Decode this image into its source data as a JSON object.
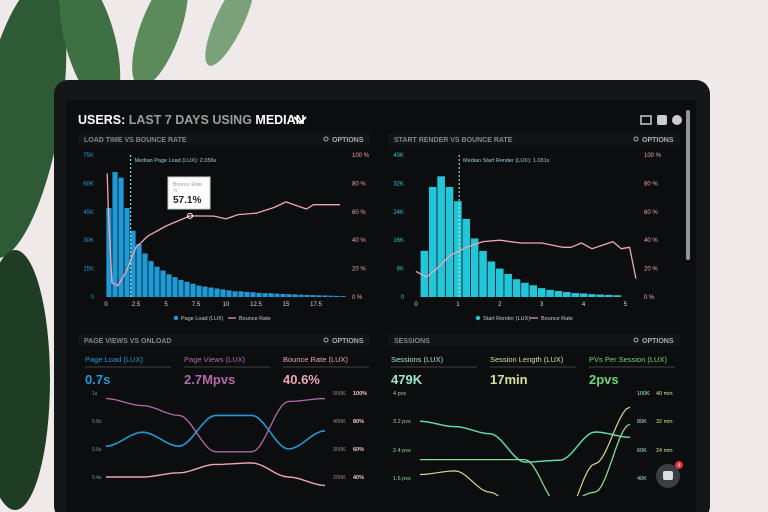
{
  "header": {
    "prefix": "USERS:",
    "range": "LAST 7 DAYS",
    "using": "USING",
    "stat": "MEDIAN"
  },
  "toolbar_icons": [
    "monitor-icon",
    "share-icon",
    "help-icon"
  ],
  "colors": {
    "bg": "#0b0d0f",
    "blue": "#1e9ad6",
    "cyan": "#22c6d8",
    "pink": "#f0a6b4",
    "purple": "#b469a8",
    "teal": "#5fd6b5",
    "green": "#6fd67a",
    "yellow": "#d7d98a"
  },
  "options_label": "OPTIONS",
  "panels": {
    "load": {
      "title": "LOAD TIME VS BOUNCE RATE",
      "median": "Median Page Load (LUX): 2.056s",
      "tooltip_title": "Bounce Rate",
      "tooltip_sub": "7s",
      "tooltip_value": "57.1%",
      "legend": [
        "Page Load (LUX)",
        "Bounce Rate"
      ]
    },
    "render": {
      "title": "START RENDER VS BOUNCE RATE",
      "median": "Median Start Render (LUX): 1.031s",
      "legend": [
        "Start Render (LUX)",
        "Bounce Rate"
      ]
    },
    "pageviews": {
      "title": "PAGE VIEWS VS ONLOAD",
      "metrics": [
        {
          "label": "Page Load (LUX)",
          "value": "0.7s"
        },
        {
          "label": "Page Views (LUX)",
          "value": "2.7Mpvs"
        },
        {
          "label": "Bounce Rate (LUX)",
          "value": "40.6%"
        }
      ]
    },
    "sessions": {
      "title": "SESSIONS",
      "metrics": [
        {
          "label": "Sessions (LUX)",
          "value": "479K"
        },
        {
          "label": "Session Length (LUX)",
          "value": "17min"
        },
        {
          "label": "PVs Per Session (LUX)",
          "value": "2pvs"
        }
      ]
    }
  },
  "chat_badge": "4",
  "chart_data": [
    {
      "type": "bar",
      "title": "LOAD TIME VS BOUNCE RATE",
      "x_ticks": [
        "0",
        "2.5",
        "5",
        "7.5",
        "10",
        "12.5",
        "15",
        "17.5"
      ],
      "y_ticks": [
        "0",
        "15K",
        "30K",
        "45K",
        "60K",
        "75K"
      ],
      "y2_ticks": [
        "0 %",
        "20 %",
        "40 %",
        "60 %",
        "80 %",
        "100 %"
      ],
      "xlim": [
        0,
        20
      ],
      "ylim": [
        0,
        75000
      ],
      "y2lim": [
        0,
        100
      ],
      "bin_width": 0.5,
      "series": [
        {
          "name": "Page Load (LUX)",
          "type": "bar",
          "values": [
            47000,
            66000,
            63000,
            47000,
            35000,
            28000,
            23000,
            19000,
            16000,
            14000,
            12000,
            10500,
            9000,
            8000,
            7000,
            6000,
            5500,
            5000,
            4500,
            4000,
            3500,
            3000,
            3000,
            2700,
            2500,
            2200,
            2000,
            2000,
            1800,
            1600,
            1500,
            1400,
            1200,
            1100,
            1000,
            900,
            800,
            700,
            600,
            500
          ]
        },
        {
          "name": "Bounce Rate",
          "type": "line",
          "points": [
            [
              0.1,
              87
            ],
            [
              0.2,
              60
            ],
            [
              0.5,
              10
            ],
            [
              1,
              8
            ],
            [
              1.7,
              18
            ],
            [
              2.5,
              35
            ],
            [
              3.5,
              43
            ],
            [
              5,
              50
            ],
            [
              7,
              57.1
            ],
            [
              9,
              57
            ],
            [
              10,
              55
            ],
            [
              11,
              58
            ],
            [
              12.5,
              59
            ],
            [
              14,
              63
            ],
            [
              15,
              67
            ],
            [
              16,
              64
            ],
            [
              16.7,
              62
            ],
            [
              17.3,
              65
            ],
            [
              18,
              65
            ],
            [
              19.5,
              65
            ]
          ]
        }
      ]
    },
    {
      "type": "bar",
      "title": "START RENDER VS BOUNCE RATE",
      "x_ticks": [
        "0",
        "1",
        "2",
        "3",
        "4",
        "5"
      ],
      "y_ticks": [
        "0",
        "8K",
        "16K",
        "24K",
        "32K",
        "40K"
      ],
      "y2_ticks": [
        "0 %",
        "20 %",
        "40 %",
        "60 %",
        "80 %",
        "100 %"
      ],
      "xlim": [
        0,
        5.3
      ],
      "ylim": [
        0,
        40000
      ],
      "y2lim": [
        0,
        100
      ],
      "bin_width": 0.2,
      "series": [
        {
          "name": "Start Render (LUX)",
          "type": "bar",
          "values": [
            13000,
            31000,
            34000,
            31000,
            27000,
            22000,
            16500,
            13000,
            10000,
            8000,
            6500,
            5000,
            4000,
            3300,
            2500,
            2000,
            1700,
            1400,
            1100,
            1000,
            800,
            700,
            600,
            500
          ]
        },
        {
          "name": "Bounce Rate",
          "type": "line",
          "points": [
            [
              0.0,
              18
            ],
            [
              0.25,
              14
            ],
            [
              0.5,
              20
            ],
            [
              0.8,
              29
            ],
            [
              1.2,
              35
            ],
            [
              1.6,
              39
            ],
            [
              2,
              40
            ],
            [
              2.5,
              38
            ],
            [
              3,
              38
            ],
            [
              3.5,
              35
            ],
            [
              3.7,
              35
            ],
            [
              3.95,
              38
            ],
            [
              4.2,
              34
            ],
            [
              4.5,
              37
            ],
            [
              4.7,
              39
            ],
            [
              4.9,
              34
            ],
            [
              5.1,
              35
            ],
            [
              5.25,
              13
            ]
          ]
        }
      ]
    },
    {
      "type": "line",
      "title": "PAGE VIEWS VS ONLOAD",
      "y_ticks": [
        "1s",
        "0.8s",
        "0.6s",
        "0.4s"
      ],
      "y2_ticks": [
        "500K",
        "400K",
        "300K",
        "200K"
      ],
      "y3_ticks": [
        "100%",
        "80%",
        "60%",
        "40%"
      ],
      "series": [
        {
          "name": "Page Load (LUX)",
          "axis": "s",
          "values": [
            0.62,
            0.72,
            0.62,
            0.84,
            0.84,
            0.6,
            0.73
          ]
        },
        {
          "name": "Page Views (LUX)",
          "axis": "K",
          "values": [
            480,
            455,
            420,
            290,
            290,
            470,
            480
          ]
        },
        {
          "name": "Bounce Rate (LUX)",
          "axis": "%",
          "values": [
            40,
            40,
            43,
            49,
            50,
            40,
            34
          ]
        }
      ]
    },
    {
      "type": "line",
      "title": "SESSIONS",
      "y_ticks": [
        "4 pvs",
        "3.2 pvs",
        "2.4 pvs",
        "1.6 pvs"
      ],
      "y2_ticks": [
        "100K",
        "80K",
        "60K",
        "40K"
      ],
      "y3_ticks": [
        "40 min",
        "32 min",
        "24 min"
      ],
      "series": [
        {
          "name": "PVs Per Session (LUX)",
          "axis": "pvs",
          "values": [
            3.2,
            3.05,
            2.85,
            2.05,
            2.1,
            2.9,
            2.75
          ]
        },
        {
          "name": "Sessions (LUX)",
          "axis": "K",
          "values": [
            53,
            53,
            53,
            53,
            20,
            30,
            78
          ]
        },
        {
          "name": "Session Length (LUX)",
          "axis": "min",
          "values": [
            17,
            18,
            12,
            4,
            2,
            20,
            36
          ]
        }
      ]
    }
  ]
}
